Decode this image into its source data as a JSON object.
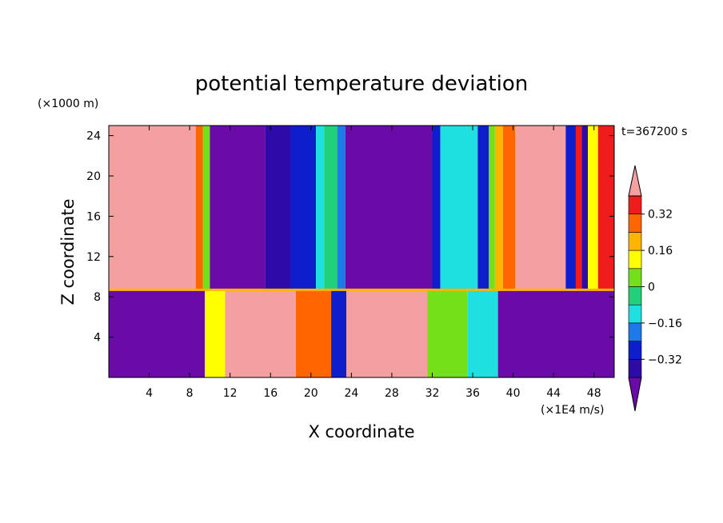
{
  "chart_data": {
    "type": "heatmap",
    "title": "potential temperature deviation",
    "xlabel": "X coordinate",
    "ylabel": "Z coordinate",
    "x_unit": "(×1E4 m/s)",
    "y_unit": "(×1000 m)",
    "time_label": "t=367200 s",
    "xlim": [
      0,
      50
    ],
    "ylim": [
      0,
      25
    ],
    "x_ticks": [
      4,
      8,
      12,
      16,
      20,
      24,
      28,
      32,
      36,
      40,
      44,
      48
    ],
    "y_ticks": [
      4,
      8,
      12,
      16,
      20,
      24
    ],
    "colorbar_ticks": [
      0.32,
      0.16,
      0,
      -0.16,
      -0.32
    ],
    "colorbar_tick_labels": [
      "0.32",
      "0.16",
      "0",
      "−0.16",
      "−0.32"
    ],
    "levels": [
      -0.4,
      -0.32,
      -0.24,
      -0.16,
      -0.08,
      0,
      0.08,
      0.16,
      0.24,
      0.32,
      0.4
    ],
    "colors": [
      "#6a0aa8",
      "#2d0ba8",
      "#0d1ecc",
      "#1e7ae8",
      "#1ee0e0",
      "#22d07a",
      "#74e01a",
      "#ffff00",
      "#ffb400",
      "#ff6600",
      "#ee1c1c",
      "#f5a0a0"
    ],
    "upper_layer_columns": [
      {
        "x0": 0,
        "x1": 8.6,
        "value": 0.45
      },
      {
        "x0": 8.6,
        "x1": 9.3,
        "value": 0.3
      },
      {
        "x0": 9.3,
        "x1": 10.0,
        "value": 0.0
      },
      {
        "x0": 10.0,
        "x1": 15.5,
        "value": -0.45
      },
      {
        "x0": 15.5,
        "x1": 18.0,
        "value": -0.38
      },
      {
        "x0": 18.0,
        "x1": 20.5,
        "value": -0.3
      },
      {
        "x0": 20.5,
        "x1": 21.3,
        "value": -0.14
      },
      {
        "x0": 21.3,
        "x1": 22.6,
        "value": -0.02
      },
      {
        "x0": 22.6,
        "x1": 23.4,
        "value": -0.2
      },
      {
        "x0": 23.4,
        "x1": 32.0,
        "value": -0.45
      },
      {
        "x0": 32.0,
        "x1": 32.8,
        "value": -0.3
      },
      {
        "x0": 32.8,
        "x1": 36.5,
        "value": -0.12
      },
      {
        "x0": 36.5,
        "x1": 37.6,
        "value": -0.3
      },
      {
        "x0": 37.6,
        "x1": 38.2,
        "value": 0.04
      },
      {
        "x0": 38.2,
        "x1": 39.0,
        "value": 0.18
      },
      {
        "x0": 39.0,
        "x1": 40.2,
        "value": 0.3
      },
      {
        "x0": 40.2,
        "x1": 45.2,
        "value": 0.45
      },
      {
        "x0": 45.2,
        "x1": 46.2,
        "value": -0.3
      },
      {
        "x0": 46.2,
        "x1": 46.8,
        "value": 0.36
      },
      {
        "x0": 46.8,
        "x1": 47.4,
        "value": -0.35
      },
      {
        "x0": 47.4,
        "x1": 48.4,
        "value": 0.1
      },
      {
        "x0": 48.4,
        "x1": 50.0,
        "value": 0.36
      }
    ],
    "upper_layer_base_z": 8.7,
    "lower_layer_columns": [
      {
        "x0": 0,
        "x1": 9.5,
        "value": -0.45
      },
      {
        "x0": 9.5,
        "x1": 11.5,
        "value": 0.1
      },
      {
        "x0": 11.5,
        "x1": 18.5,
        "value": 0.45
      },
      {
        "x0": 18.5,
        "x1": 22.0,
        "value": 0.25
      },
      {
        "x0": 22.0,
        "x1": 23.5,
        "value": -0.25
      },
      {
        "x0": 23.5,
        "x1": 31.5,
        "value": 0.45
      },
      {
        "x0": 31.5,
        "x1": 35.5,
        "value": 0.05
      },
      {
        "x0": 35.5,
        "x1": 38.5,
        "value": -0.1
      },
      {
        "x0": 38.5,
        "x1": 50.0,
        "value": -0.45
      }
    ]
  }
}
